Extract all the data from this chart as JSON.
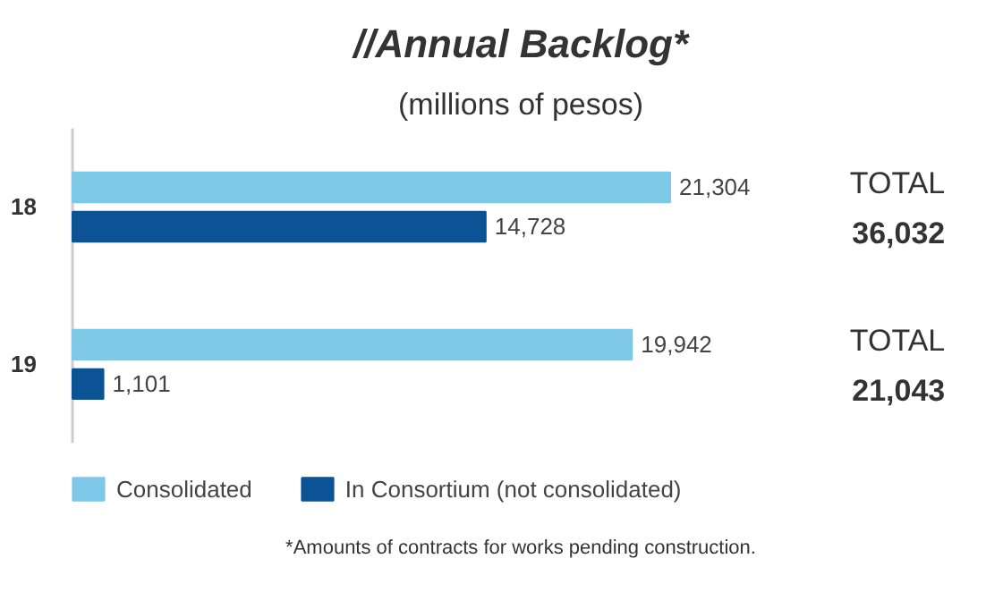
{
  "chart_data": {
    "type": "bar",
    "orientation": "horizontal",
    "title": "//Annual Backlog*",
    "subtitle": "(millions of pesos)",
    "categories": [
      "18",
      "19"
    ],
    "series": [
      {
        "name": "Consolidated",
        "color": "#7ec8e8",
        "values": [
          21304,
          19942
        ],
        "value_labels": [
          "21,304",
          "19,942"
        ]
      },
      {
        "name": "In Consortium (not consolidated)",
        "color": "#0b5394",
        "values": [
          14728,
          1101
        ],
        "value_labels": [
          "14,728",
          "1,101"
        ]
      }
    ],
    "legend": "bottom",
    "grid": false,
    "tick_labels": "y",
    "annotations": [
      "TOTAL\n36,032",
      "TOTAL\n21,043",
      "*Amounts of contracts for works pending construction."
    ]
  }
}
